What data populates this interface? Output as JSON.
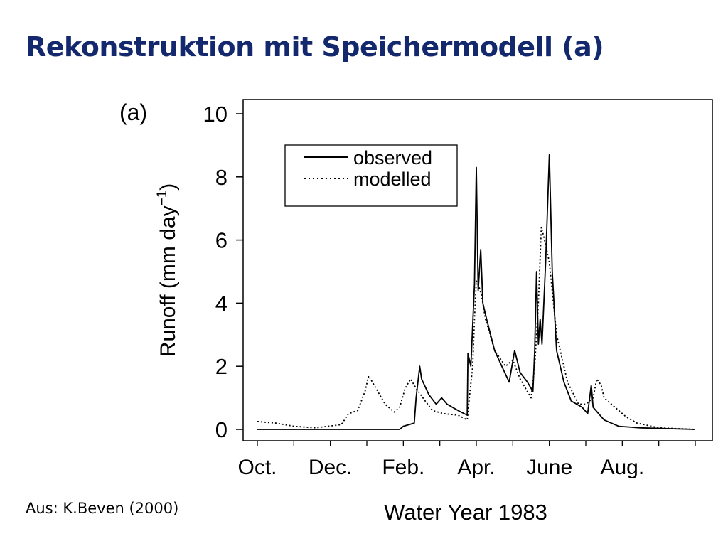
{
  "slide": {
    "title": "Rekonstruktion mit Speichermodell (a)",
    "source": "Aus: K.Beven (2000)"
  },
  "chart_data": {
    "type": "line",
    "panel_label": "(a)",
    "xlabel": "Water Year 1983",
    "ylabel_main": "Runoff (mm day",
    "ylabel_sup": "−1",
    "ylabel_close": ")",
    "x_unit": "months since 1 Oct 1982",
    "xlim": [
      0,
      12
    ],
    "ylim": [
      0,
      10
    ],
    "y_ticks": [
      0,
      2,
      4,
      6,
      8,
      10
    ],
    "x_ticks": [
      {
        "label": "Oct.",
        "x": 0.0
      },
      {
        "label": "Dec.",
        "x": 2.0
      },
      {
        "label": "Feb.",
        "x": 4.0
      },
      {
        "label": "Apr.",
        "x": 6.0
      },
      {
        "label": "June",
        "x": 8.0
      },
      {
        "label": "Aug.",
        "x": 10.0
      }
    ],
    "legend_position": "top-left inside plot",
    "grid": false,
    "series": [
      {
        "name": "observed",
        "style": "solid",
        "points": [
          [
            0.0,
            0.0
          ],
          [
            1.0,
            0.0
          ],
          [
            2.0,
            0.0
          ],
          [
            3.0,
            0.0
          ],
          [
            3.9,
            0.0
          ],
          [
            4.0,
            0.1
          ],
          [
            4.3,
            0.2
          ],
          [
            4.35,
            1.0
          ],
          [
            4.45,
            2.0
          ],
          [
            4.5,
            1.6
          ],
          [
            4.7,
            1.1
          ],
          [
            4.9,
            0.8
          ],
          [
            5.05,
            1.0
          ],
          [
            5.2,
            0.8
          ],
          [
            5.5,
            0.6
          ],
          [
            5.75,
            0.45
          ],
          [
            5.77,
            2.4
          ],
          [
            5.85,
            2.0
          ],
          [
            5.95,
            4.6
          ],
          [
            6.0,
            8.3
          ],
          [
            6.05,
            4.4
          ],
          [
            6.12,
            5.7
          ],
          [
            6.18,
            4.0
          ],
          [
            6.28,
            3.5
          ],
          [
            6.5,
            2.5
          ],
          [
            6.7,
            2.0
          ],
          [
            6.9,
            1.5
          ],
          [
            7.05,
            2.5
          ],
          [
            7.2,
            1.8
          ],
          [
            7.4,
            1.5
          ],
          [
            7.55,
            1.2
          ],
          [
            7.6,
            2.5
          ],
          [
            7.65,
            5.0
          ],
          [
            7.7,
            2.7
          ],
          [
            7.75,
            3.5
          ],
          [
            7.8,
            2.7
          ],
          [
            7.9,
            5.3
          ],
          [
            8.0,
            8.7
          ],
          [
            8.08,
            5.0
          ],
          [
            8.2,
            2.5
          ],
          [
            8.4,
            1.5
          ],
          [
            8.6,
            0.9
          ],
          [
            8.9,
            0.7
          ],
          [
            9.05,
            0.5
          ],
          [
            9.15,
            1.4
          ],
          [
            9.2,
            0.7
          ],
          [
            9.5,
            0.3
          ],
          [
            9.9,
            0.1
          ],
          [
            10.5,
            0.05
          ],
          [
            12.0,
            0.0
          ]
        ]
      },
      {
        "name": "modelled",
        "style": "dotted",
        "points": [
          [
            0.0,
            0.25
          ],
          [
            0.5,
            0.2
          ],
          [
            1.0,
            0.1
          ],
          [
            1.6,
            0.05
          ],
          [
            2.3,
            0.15
          ],
          [
            2.5,
            0.5
          ],
          [
            2.75,
            0.6
          ],
          [
            2.95,
            1.2
          ],
          [
            3.05,
            1.7
          ],
          [
            3.2,
            1.4
          ],
          [
            3.5,
            0.8
          ],
          [
            3.75,
            0.55
          ],
          [
            3.9,
            0.7
          ],
          [
            4.05,
            1.3
          ],
          [
            4.2,
            1.6
          ],
          [
            4.35,
            1.3
          ],
          [
            4.6,
            0.9
          ],
          [
            4.8,
            0.6
          ],
          [
            5.1,
            0.5
          ],
          [
            5.5,
            0.45
          ],
          [
            5.75,
            0.3
          ],
          [
            5.8,
            0.9
          ],
          [
            5.9,
            2.0
          ],
          [
            5.95,
            3.5
          ],
          [
            6.0,
            4.7
          ],
          [
            6.08,
            4.5
          ],
          [
            6.15,
            4.2
          ],
          [
            6.25,
            3.5
          ],
          [
            6.5,
            2.5
          ],
          [
            6.8,
            2.0
          ],
          [
            7.0,
            2.2
          ],
          [
            7.2,
            1.6
          ],
          [
            7.5,
            1.0
          ],
          [
            7.6,
            2.0
          ],
          [
            7.7,
            4.0
          ],
          [
            7.78,
            6.4
          ],
          [
            7.85,
            6.1
          ],
          [
            8.0,
            5.3
          ],
          [
            8.2,
            3.0
          ],
          [
            8.5,
            1.5
          ],
          [
            8.8,
            0.8
          ],
          [
            9.0,
            0.8
          ],
          [
            9.2,
            1.0
          ],
          [
            9.3,
            1.6
          ],
          [
            9.42,
            1.4
          ],
          [
            9.5,
            1.0
          ],
          [
            9.8,
            0.7
          ],
          [
            10.1,
            0.4
          ],
          [
            10.4,
            0.2
          ],
          [
            11.0,
            0.05
          ],
          [
            12.0,
            0.0
          ]
        ]
      }
    ]
  }
}
